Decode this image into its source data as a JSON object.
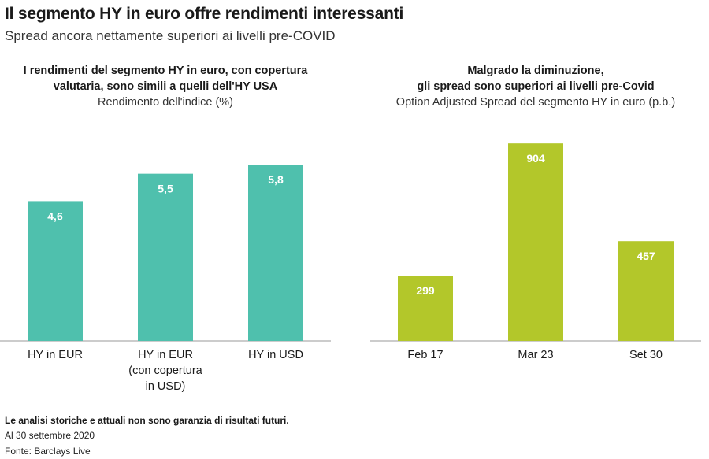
{
  "header": {
    "title": "Il segmento HY in euro offre rendimenti interessanti",
    "subtitle": "Spread ancora nettamente superiori ai livelli pre-COVID"
  },
  "colors": {
    "left_bars": "#4fc0ad",
    "right_bars": "#b3c72a",
    "axis": "#999999"
  },
  "chart_data": [
    {
      "type": "bar",
      "title_lines": [
        "I rendimenti del segmento HY in euro, con copertura",
        "valutaria, sono simili a quelli dell'HY USA"
      ],
      "ylabel": "Rendimento dell'indice (%)",
      "categories": [
        [
          "HY in EUR"
        ],
        [
          "HY in EUR",
          "(con copertura",
          "in USD)"
        ],
        [
          "HY in USD"
        ]
      ],
      "values": [
        4.6,
        5.5,
        5.8
      ],
      "value_labels": [
        "4,6",
        "5,5",
        "5,8"
      ],
      "ylim": [
        0,
        7.33
      ]
    },
    {
      "type": "bar",
      "title_lines": [
        "Malgrado la diminuzione,",
        "gli spread sono superiori ai livelli pre-Covid"
      ],
      "ylabel": "Option Adjusted Spread del segmento HY in euro (p.b.)",
      "categories": [
        [
          "Feb 17"
        ],
        [
          "Mar 23"
        ],
        [
          "Set 30"
        ]
      ],
      "values": [
        299,
        904,
        457
      ],
      "value_labels": [
        "299",
        "904",
        "457"
      ],
      "ylim": [
        0,
        1020
      ]
    }
  ],
  "footer": {
    "disclaimer": "Le analisi storiche e attuali non sono garanzia di risultati futuri.",
    "date": "Al 30 settembre 2020",
    "source": "Fonte: Barclays Live"
  }
}
